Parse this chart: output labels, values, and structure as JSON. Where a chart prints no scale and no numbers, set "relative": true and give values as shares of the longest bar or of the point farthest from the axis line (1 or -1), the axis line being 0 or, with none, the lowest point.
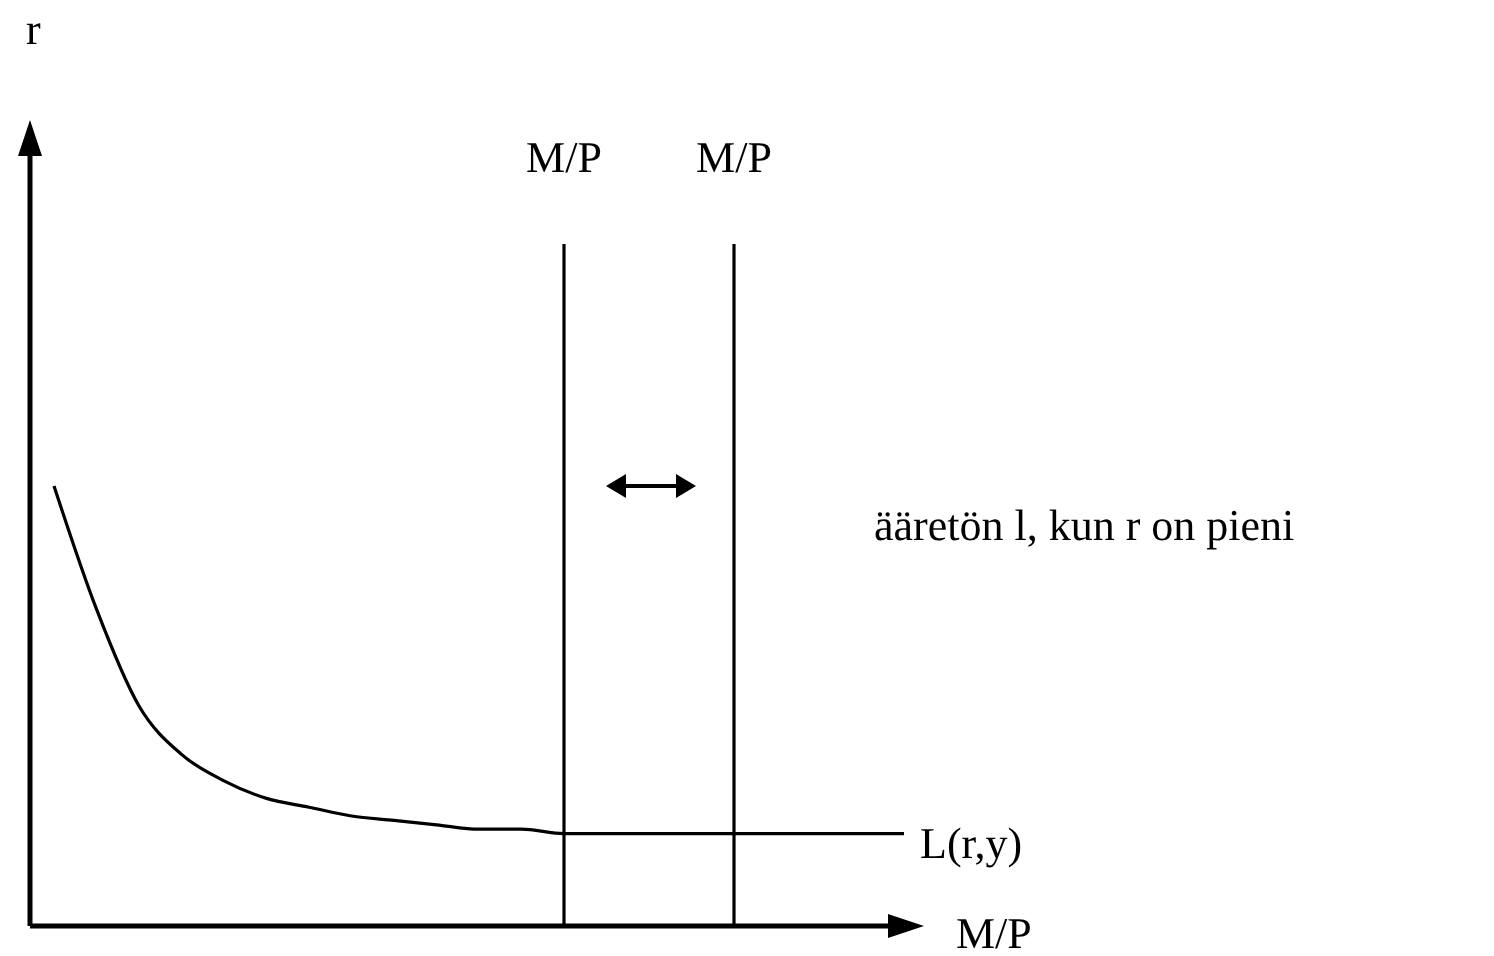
{
  "chart_data": {
    "type": "line",
    "relative": true,
    "xlabel": "M/P",
    "categories": [
      null,
      null,
      null,
      null,
      null,
      null,
      null,
      null,
      null,
      null,
      null,
      null,
      null,
      null,
      null,
      null,
      null,
      null,
      null,
      null,
      null
    ],
    "series": [
      {
        "name": "L(r,y)",
        "color": "#000000",
        "values": [
          1,
          0.72,
          0.5,
          0.39,
          0.33,
          0.29,
          0.27,
          0.25,
          0.24,
          0.23,
          0.22,
          0.22,
          0.21,
          0.21,
          0.21,
          0.21,
          0.21,
          0.21,
          0.21,
          0.21,
          0.21
        ]
      }
    ],
    "annotations": [
      "r",
      "M/P",
      "M/P",
      "ääretön l, kun r on pieni"
    ],
    "marker": "none",
    "line_style": "solid"
  }
}
